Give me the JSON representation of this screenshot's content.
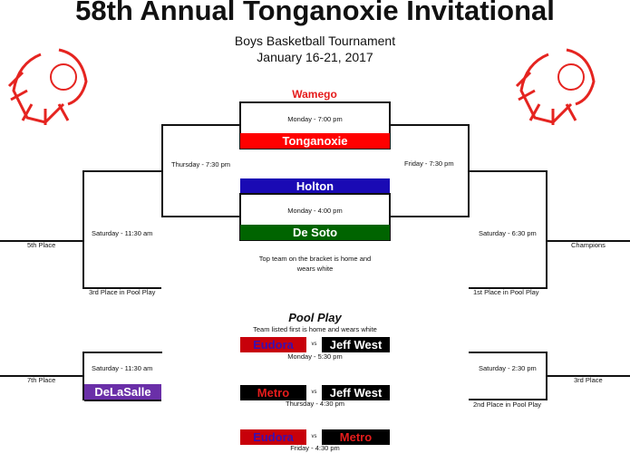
{
  "title": "58th Annual Tonganoxie Invitational",
  "subtitle": "Boys Basketball Tournament",
  "dates": "January 16-21, 2017",
  "bracket": {
    "top_seed": "Wamego",
    "game1": {
      "time": "Monday - 7:00 pm",
      "team": "Tonganoxie",
      "color": "#ff0000"
    },
    "game2": {
      "top_team": "Holton",
      "top_color": "#1a0ab4",
      "time": "Monday - 4:00 pm",
      "team": "De Soto",
      "color": "#006400"
    },
    "semi_left": "Thursday - 7:30 pm",
    "semi_right": "Friday - 7:30 pm",
    "fifth_game": "Saturday - 11:30 am",
    "fifth_label": "5th Place",
    "fifth_opponent": "3rd Place in Pool Play",
    "final_game": "Saturday - 6:30 pm",
    "champions_label": "Champions",
    "final_opponent": "1st Place in Pool Play",
    "note": "Top team on the bracket is home and wears white",
    "seventh_game": "Saturday - 11:30 am",
    "seventh_label": "7th Place",
    "seventh_team": "DeLaSalle",
    "seventh_color": "#6a2fa8",
    "third_game": "Saturday - 2:30 pm",
    "third_label": "3rd Place",
    "third_opponent": "2nd Place in Pool Play"
  },
  "pool": {
    "title": "Pool Play",
    "note": "Team listed first is home and wears white",
    "vs": "vs",
    "games": [
      {
        "home": "Eudora",
        "away": "Jeff West",
        "time": "Monday - 5:30 pm"
      },
      {
        "home": "Metro",
        "away": "Jeff West",
        "time": "Thursday - 4:30 pm"
      },
      {
        "home": "Eudora",
        "away": "Metro",
        "time": "Friday - 4:30 pm"
      }
    ]
  }
}
